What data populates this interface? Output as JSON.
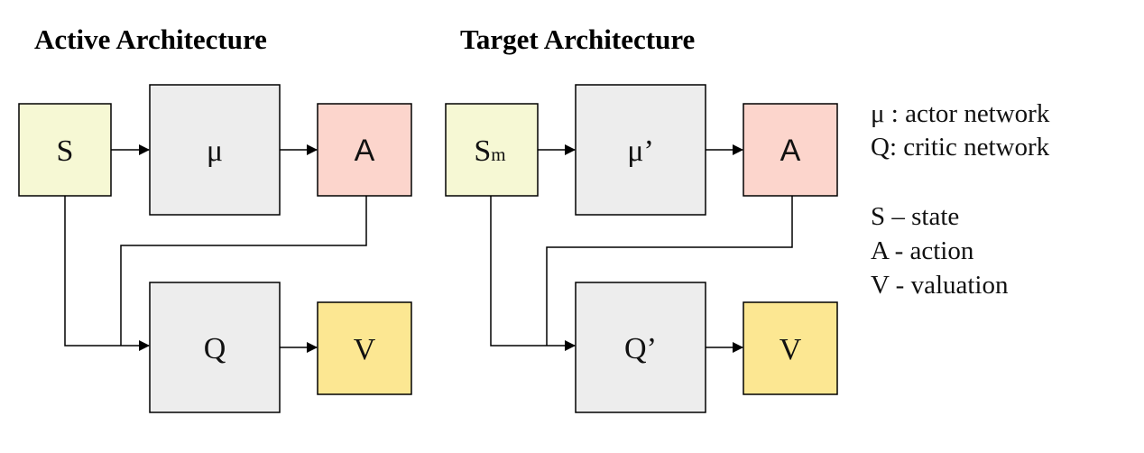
{
  "diagrams": [
    {
      "title": "Active Architecture",
      "nodes": {
        "state": {
          "label": "S",
          "sub": "",
          "color": "#f6f8d4"
        },
        "actor": {
          "label": "μ",
          "color": "#ededed"
        },
        "action": {
          "label": "A",
          "color": "#fcd5cc"
        },
        "critic": {
          "label": "Q",
          "color": "#ededed"
        },
        "value": {
          "label": "V",
          "color": "#fce792"
        }
      }
    },
    {
      "title": "Target Architecture",
      "nodes": {
        "state": {
          "label": "S",
          "sub": "m",
          "color": "#f6f8d4"
        },
        "actor": {
          "label": "μ’",
          "color": "#ededed"
        },
        "action": {
          "label": "A",
          "color": "#fcd5cc"
        },
        "critic": {
          "label": "Q’",
          "color": "#ededed"
        },
        "value": {
          "label": "V",
          "color": "#fce792"
        }
      }
    }
  ],
  "legend": {
    "lines": [
      "μ : actor network",
      "Q: critic network",
      "",
      "S – state",
      "A - action",
      "V - valuation"
    ]
  }
}
